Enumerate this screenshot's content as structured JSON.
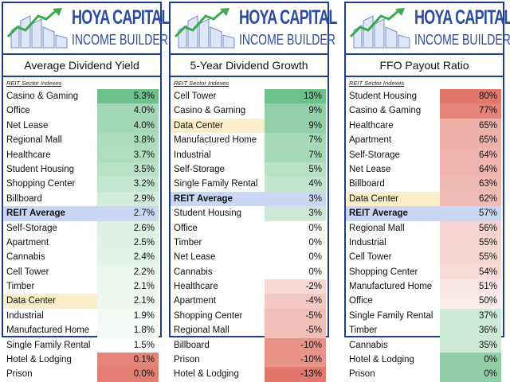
{
  "brand": {
    "line1": "HOYA CAPITAL",
    "line2": "INCOME BUILDER"
  },
  "colors": {
    "panel_border": "#1f3f8c",
    "average_row": "#c9d7f5",
    "data_center_row": "#fbeecb",
    "high_good_green": "#6cc08a",
    "low_bad_red": "#e2776b"
  },
  "sector_header": "REIT Sector Indexes",
  "chart_data": [
    {
      "type": "table",
      "title": "Average Dividend Yield",
      "color_scale": "higher-is-green",
      "rows": [
        {
          "label": "Casino & Gaming",
          "value": "5.3%",
          "num": 5.3
        },
        {
          "label": "Office",
          "value": "4.0%",
          "num": 4.0
        },
        {
          "label": "Net Lease",
          "value": "4.0%",
          "num": 4.0
        },
        {
          "label": "Regional Mall",
          "value": "3.8%",
          "num": 3.8
        },
        {
          "label": "Healthcare",
          "value": "3.7%",
          "num": 3.7
        },
        {
          "label": "Student Housing",
          "value": "3.5%",
          "num": 3.5
        },
        {
          "label": "Shopping Center",
          "value": "3.2%",
          "num": 3.2
        },
        {
          "label": "Billboard",
          "value": "2.9%",
          "num": 2.9
        },
        {
          "label": "REIT Average",
          "value": "2.7%",
          "num": 2.7,
          "kind": "avg"
        },
        {
          "label": "Self-Storage",
          "value": "2.6%",
          "num": 2.6
        },
        {
          "label": "Apartment",
          "value": "2.5%",
          "num": 2.5
        },
        {
          "label": "Cannabis",
          "value": "2.4%",
          "num": 2.4
        },
        {
          "label": "Cell Tower",
          "value": "2.2%",
          "num": 2.2
        },
        {
          "label": "Timber",
          "value": "2.1%",
          "num": 2.1
        },
        {
          "label": "Data Center",
          "value": "2.1%",
          "num": 2.1,
          "kind": "hl"
        },
        {
          "label": "Industrial",
          "value": "1.9%",
          "num": 1.9
        },
        {
          "label": "Manufactured Home",
          "value": "1.8%",
          "num": 1.8
        },
        {
          "label": "Single Family Rental",
          "value": "1.5%",
          "num": 1.5
        },
        {
          "label": "Hotel & Lodging",
          "value": "0.1%",
          "num": 0.1
        },
        {
          "label": "Prison",
          "value": "0.0%",
          "num": 0.0
        }
      ]
    },
    {
      "type": "table",
      "title": "5-Year Dividend Growth",
      "color_scale": "diverging",
      "rows": [
        {
          "label": "Cell Tower",
          "value": "13%",
          "num": 13
        },
        {
          "label": "Casino & Gaming",
          "value": "9%",
          "num": 9
        },
        {
          "label": "Data Center",
          "value": "9%",
          "num": 9,
          "kind": "hl"
        },
        {
          "label": "Manufactured Home",
          "value": "7%",
          "num": 7
        },
        {
          "label": "Industrial",
          "value": "7%",
          "num": 7
        },
        {
          "label": "Self-Storage",
          "value": "5%",
          "num": 5
        },
        {
          "label": "Single Family Rental",
          "value": "4%",
          "num": 4
        },
        {
          "label": "REIT Average",
          "value": "3%",
          "num": 3,
          "kind": "avg"
        },
        {
          "label": "Student Housing",
          "value": "3%",
          "num": 3
        },
        {
          "label": "Office",
          "value": "0%",
          "num": 0
        },
        {
          "label": "Timber",
          "value": "0%",
          "num": 0
        },
        {
          "label": "Net Lease",
          "value": "0%",
          "num": 0
        },
        {
          "label": "Cannabis",
          "value": "0%",
          "num": 0
        },
        {
          "label": "Healthcare",
          "value": "-2%",
          "num": -2
        },
        {
          "label": "Apartment",
          "value": "-4%",
          "num": -4
        },
        {
          "label": "Shopping Center",
          "value": "-5%",
          "num": -5
        },
        {
          "label": "Regional Mall",
          "value": "-5%",
          "num": -5
        },
        {
          "label": "Billboard",
          "value": "-10%",
          "num": -10
        },
        {
          "label": "Prison",
          "value": "-10%",
          "num": -10
        },
        {
          "label": "Hotel & Lodging",
          "value": "-13%",
          "num": -13
        }
      ]
    },
    {
      "type": "table",
      "title": "FFO Payout Ratio",
      "color_scale": "higher-is-red",
      "rows": [
        {
          "label": "Student Housing",
          "value": "80%",
          "num": 80
        },
        {
          "label": "Casino & Gaming",
          "value": "77%",
          "num": 77
        },
        {
          "label": "Healthcare",
          "value": "65%",
          "num": 65
        },
        {
          "label": "Apartment",
          "value": "65%",
          "num": 65
        },
        {
          "label": "Self-Storage",
          "value": "64%",
          "num": 64
        },
        {
          "label": "Net Lease",
          "value": "64%",
          "num": 64
        },
        {
          "label": "Billboard",
          "value": "63%",
          "num": 63
        },
        {
          "label": "Data Center",
          "value": "62%",
          "num": 62,
          "kind": "hl"
        },
        {
          "label": "REIT Average",
          "value": "57%",
          "num": 57,
          "kind": "avg"
        },
        {
          "label": "Regional Mall",
          "value": "56%",
          "num": 56
        },
        {
          "label": "Industrial",
          "value": "55%",
          "num": 55
        },
        {
          "label": "Cell Tower",
          "value": "55%",
          "num": 55
        },
        {
          "label": "Shopping Center",
          "value": "54%",
          "num": 54
        },
        {
          "label": "Manufactured Home",
          "value": "51%",
          "num": 51
        },
        {
          "label": "Office",
          "value": "50%",
          "num": 50
        },
        {
          "label": "Single Family Rental",
          "value": "37%",
          "num": 37
        },
        {
          "label": "Timber",
          "value": "36%",
          "num": 36
        },
        {
          "label": "Cannabis",
          "value": "35%",
          "num": 35
        },
        {
          "label": "Hotel & Lodging",
          "value": "0%",
          "num": 0
        },
        {
          "label": "Prison",
          "value": "0%",
          "num": 0
        }
      ]
    }
  ]
}
